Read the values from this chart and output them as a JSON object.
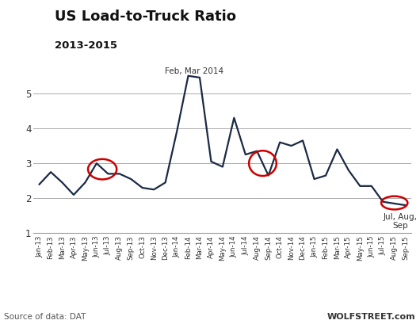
{
  "title": "US Load-to-Truck Ratio",
  "subtitle": "2013-2015",
  "source_text": "Source of data: DAT",
  "watermark": "WOLFSTREET.com",
  "annotation1": "Feb, Mar 2014",
  "annotation2": "Jul, Aug,\nSep",
  "ylim": [
    1,
    6.0
  ],
  "yticks": [
    1,
    2,
    3,
    4,
    5
  ],
  "line_color": "#1b2a45",
  "line_width": 1.6,
  "background_color": "#ffffff",
  "grid_color": "#aaaaaa",
  "circle_color": "#cc0000",
  "labels": [
    "Jan-13",
    "Feb-13",
    "Mar-13",
    "Apr-13",
    "May-13",
    "Jun-13",
    "Jul-13",
    "Aug-13",
    "Sep-13",
    "Oct-13",
    "Nov-13",
    "Dec-13",
    "Jan-14",
    "Feb-14",
    "Mar-14",
    "Apr-14",
    "May-14",
    "Jun-14",
    "Jul-14",
    "Aug-14",
    "Sep-14",
    "Oct-14",
    "Nov-14",
    "Dec-14",
    "Jan-15",
    "Feb-15",
    "Mar-15",
    "Apr-15",
    "May-15",
    "Jun-15",
    "Jul-15",
    "Aug-15",
    "Sep-15"
  ],
  "values": [
    2.4,
    2.75,
    2.45,
    2.1,
    2.45,
    3.0,
    2.7,
    2.7,
    2.55,
    2.3,
    2.25,
    2.45,
    3.9,
    5.5,
    5.45,
    3.05,
    2.9,
    4.3,
    3.25,
    3.35,
    2.65,
    3.6,
    3.5,
    3.65,
    2.55,
    2.65,
    3.4,
    2.8,
    2.35,
    2.35,
    1.9,
    1.85,
    1.8
  ]
}
